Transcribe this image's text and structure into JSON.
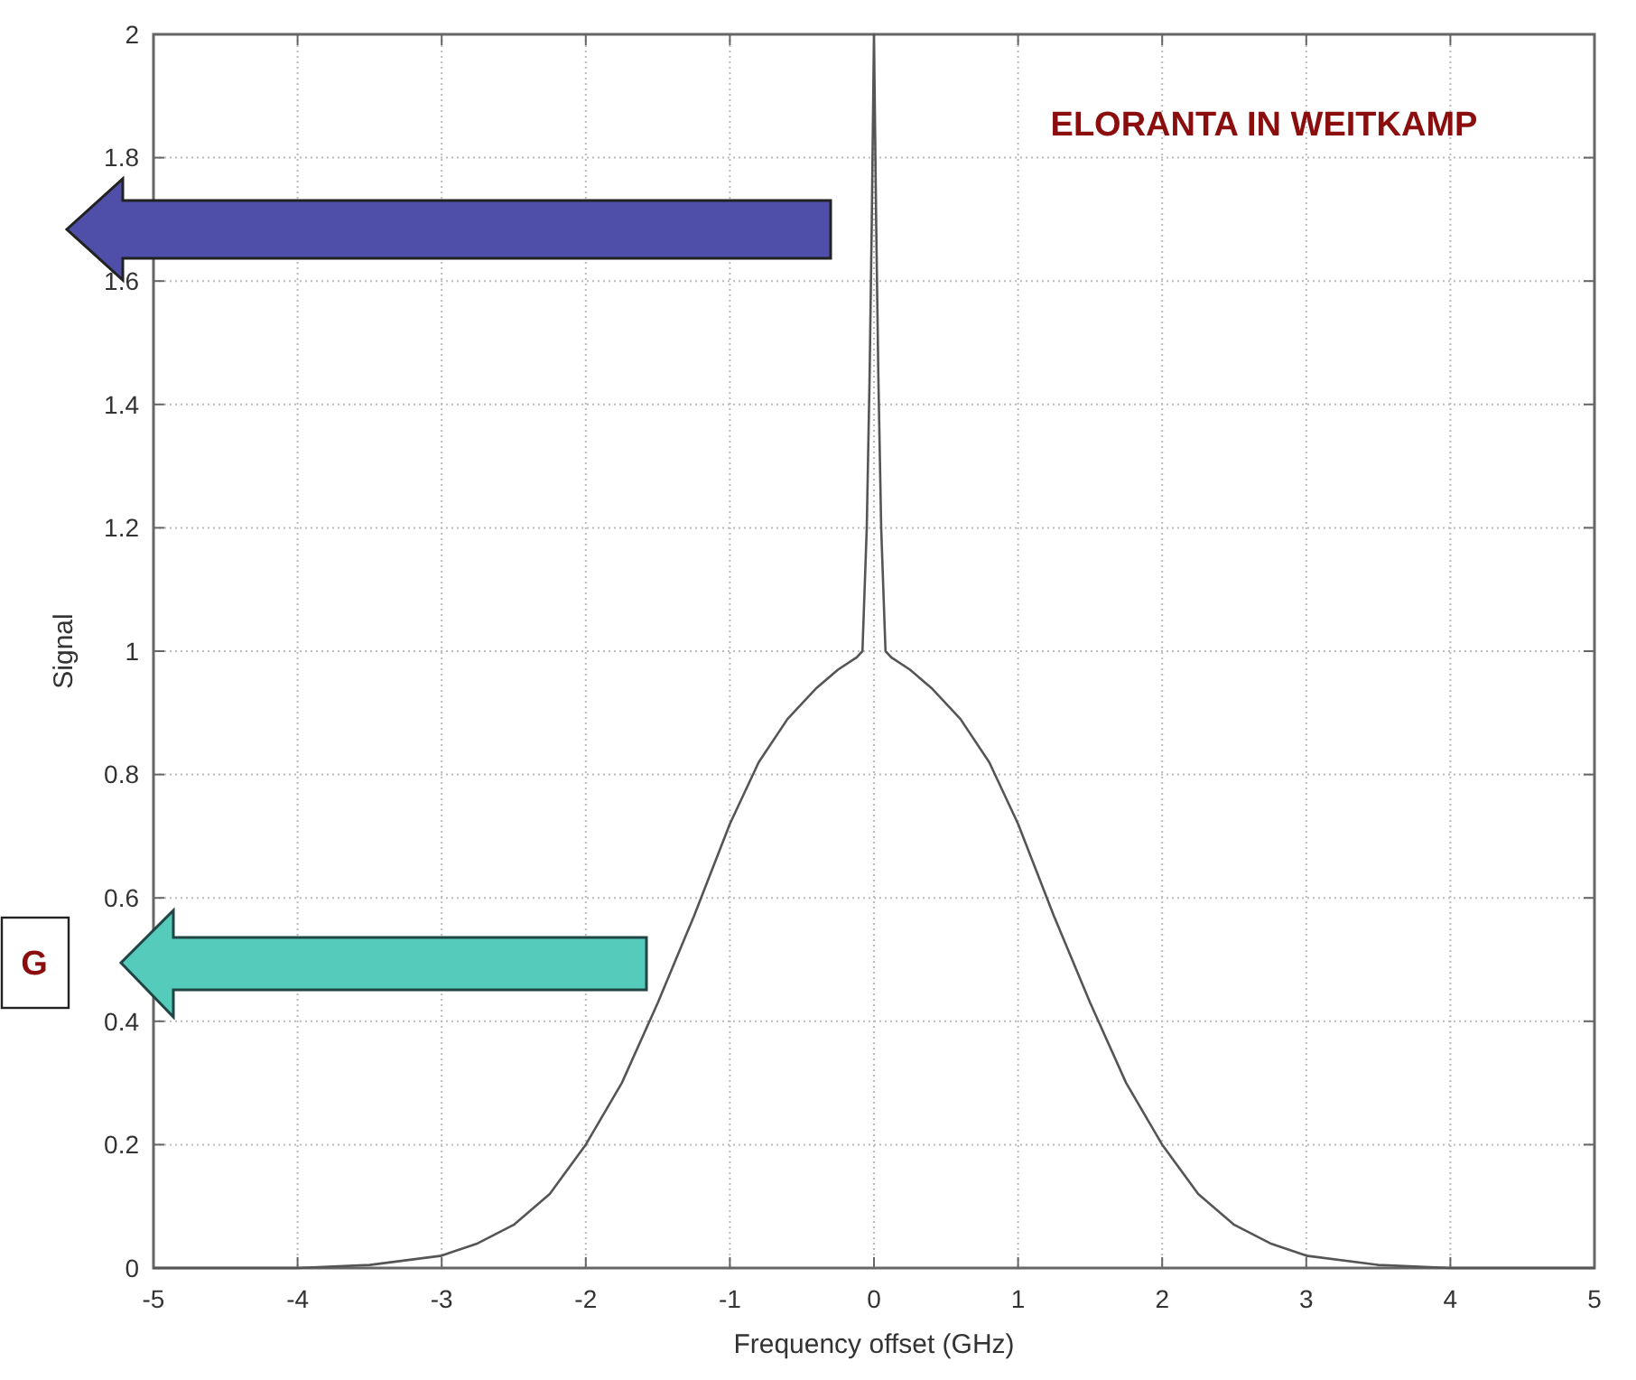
{
  "chart_data": {
    "type": "line",
    "xlabel": "Frequency offset (GHz)",
    "ylabel": "Signal",
    "xlim": [
      -5,
      5
    ],
    "xticks": [
      -5,
      -4,
      -3,
      -2,
      -1,
      0,
      1,
      2,
      3,
      4,
      5
    ],
    "ylim": [
      0,
      2
    ],
    "yticks": [
      0,
      0.2,
      0.4,
      0.6,
      0.8,
      1,
      1.2,
      1.4,
      1.6,
      1.8,
      2
    ],
    "grid": true,
    "line_style": "solid",
    "marker": "none",
    "series": [
      {
        "color": "#555555",
        "x": [
          -5,
          -4.5,
          -4,
          -3.5,
          -3,
          -2.75,
          -2.5,
          -2.25,
          -2,
          -1.75,
          -1.5,
          -1.25,
          -1,
          -0.8,
          -0.6,
          -0.4,
          -0.25,
          -0.12,
          -0.08,
          -0.05,
          -0.03,
          -0.015,
          0,
          0.015,
          0.03,
          0.05,
          0.08,
          0.12,
          0.25,
          0.4,
          0.6,
          0.8,
          1,
          1.25,
          1.5,
          1.75,
          2,
          2.25,
          2.5,
          2.75,
          3,
          3.5,
          4,
          4.5,
          5
        ],
        "values": [
          0,
          0,
          0,
          0.005,
          0.02,
          0.04,
          0.07,
          0.12,
          0.2,
          0.3,
          0.43,
          0.57,
          0.72,
          0.82,
          0.89,
          0.94,
          0.97,
          0.99,
          1,
          1.2,
          1.45,
          1.7,
          2,
          1.7,
          1.45,
          1.2,
          1,
          0.99,
          0.97,
          0.94,
          0.89,
          0.82,
          0.72,
          0.57,
          0.43,
          0.3,
          0.2,
          0.12,
          0.07,
          0.04,
          0.02,
          0.005,
          0,
          0,
          0
        ]
      }
    ],
    "annotations": [
      "ELORANTA IN WEITKAMP",
      "G"
    ]
  }
}
